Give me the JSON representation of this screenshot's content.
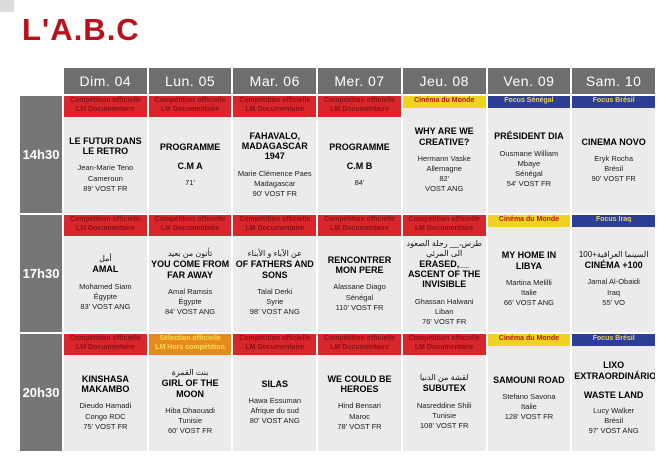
{
  "page_title": "L'A.B.C",
  "schedule": {
    "days": [
      "Dim. 04",
      "Lun. 05",
      "Mar. 06",
      "Mer. 07",
      "Jeu. 08",
      "Ven. 09",
      "Sam. 10"
    ],
    "times": [
      "14h30",
      "17h30",
      "20h30"
    ],
    "banners": {
      "competition": {
        "bg": "#d9262c",
        "fg": "#8a1115",
        "lines": [
          "Compétition officielle",
          "LM Documentaire"
        ]
      },
      "selection": {
        "bg": "#e8891e",
        "fg": "#f7df4e",
        "lines": [
          "Sélection officielle",
          "LM Hors compétition"
        ]
      },
      "monde": {
        "bg": "#f0d321",
        "fg": "#b5121b",
        "lines": [
          "Cinéma du Monde"
        ]
      },
      "senegal": {
        "bg": "#2c3e96",
        "fg": "#e8d44d",
        "lines": [
          "Focus Sénégal"
        ]
      },
      "bresil": {
        "bg": "#2c3e96",
        "fg": "#e8d44d",
        "lines": [
          "Focus Brésil"
        ]
      },
      "iraq": {
        "bg": "#2c3e96",
        "fg": "#e8d44d",
        "lines": [
          "Focus Iraq"
        ]
      }
    },
    "rows": [
      {
        "time": "14h30",
        "films": [
          {
            "banner": "competition",
            "arabic": "",
            "title": "LE FUTUR DANS LE RETRO",
            "title2": "",
            "details": [
              "Jean-Marie Teno",
              "Cameroun",
              "89' VOST FR"
            ]
          },
          {
            "banner": "competition",
            "arabic": "",
            "title": "PROGRAMME",
            "title2": "C.M A",
            "details": [
              "71'"
            ]
          },
          {
            "banner": "competition",
            "arabic": "",
            "title": "FAHAVALO, MADAGASCAR 1947",
            "title2": "",
            "details": [
              "Marie Clémence Paes",
              "Madagascar",
              "90'  VOST FR"
            ]
          },
          {
            "banner": "competition",
            "arabic": "",
            "title": "PROGRAMME",
            "title2": "C.M B",
            "details": [
              "84'"
            ]
          },
          {
            "banner": "monde",
            "arabic": "",
            "title": "WHY ARE WE CREATIVE?",
            "title2": "",
            "details": [
              "Hermann Vaske",
              "Allemagne",
              "82'",
              "VOST ANG"
            ]
          },
          {
            "banner": "senegal",
            "arabic": "",
            "title": "PRÉSIDENT DIA",
            "title2": "",
            "details": [
              "Ousmane William Mbaye",
              "Sénégal",
              "54' VOST FR"
            ]
          },
          {
            "banner": "bresil",
            "arabic": "",
            "title": "CINEMA NOVO",
            "title2": "",
            "details": [
              "Eryk Rocha",
              "Brésil",
              "90' VOST FR"
            ]
          }
        ]
      },
      {
        "time": "17h30",
        "films": [
          {
            "banner": "competition",
            "arabic": "أمل",
            "title": "AMAL",
            "title2": "",
            "details": [
              "Mohamed Siam",
              "Égypte",
              "83'  VOST ANG"
            ]
          },
          {
            "banner": "competition",
            "arabic": "تأتون من بعيد",
            "title": "YOU COME FROM FAR AWAY",
            "title2": "",
            "details": [
              "Amal Ramsis",
              "Égypte",
              "84' VOST ANG"
            ]
          },
          {
            "banner": "competition",
            "arabic": "عن الآباء و الأبناء",
            "title": "OF FATHERS AND SONS",
            "title2": "",
            "details": [
              "Talal Derki",
              "Syrie",
              "98' VOST ANG"
            ]
          },
          {
            "banner": "competition",
            "arabic": "",
            "title": "RENCONTRER MON PERE",
            "title2": "",
            "details": [
              "Alassane Diago",
              "Sénégal",
              "110' VOST FR"
            ]
          },
          {
            "banner": "competition",
            "arabic": "طرس،__ رحلة الصعود الى المرئي",
            "title": "ERASED,__ ASCENT OF THE INVISIBLE",
            "title2": "",
            "details": [
              "Ghassan Halwani",
              "Liban",
              "76' VOST FR"
            ]
          },
          {
            "banner": "monde",
            "arabic": "",
            "title": "MY HOME IN LIBYA",
            "title2": "",
            "details": [
              "Martina Melilli",
              "Italie",
              "66' VOST ANG"
            ]
          },
          {
            "banner": "iraq",
            "arabic": "السينما العراقية+100",
            "title": "CINÉMA +100",
            "title2": "",
            "details": [
              "Jamal Al-Obaidi",
              "Iraq",
              "55' VO"
            ]
          }
        ]
      },
      {
        "time": "20h30",
        "films": [
          {
            "banner": "competition",
            "arabic": "",
            "title": "KINSHASA MAKAMBO",
            "title2": "",
            "details": [
              "Dieudo Hamadi",
              "Congo RDC",
              "75' VOST FR"
            ]
          },
          {
            "banner": "selection",
            "arabic": "بنت القمرة",
            "title": "GIRL OF THE MOON",
            "title2": "",
            "details": [
              "Hiba Dhaouadi",
              "Tunisie",
              "60' VOST FR"
            ]
          },
          {
            "banner": "competition",
            "arabic": "",
            "title": "SILAS",
            "title2": "",
            "details": [
              "Hawa Essuman",
              "Afrique du sud",
              "80' VOST ANG"
            ]
          },
          {
            "banner": "competition",
            "arabic": "",
            "title": "WE COULD BE HEROES",
            "title2": "",
            "details": [
              "Hind Bensari",
              "Maroc",
              "78' VOST FR"
            ]
          },
          {
            "banner": "competition",
            "arabic": "لقشة من الدنيا",
            "title": "SUBUTEX",
            "title2": "",
            "details": [
              "Nasreddine Shili",
              "Tunisie",
              "108' VOST FR"
            ]
          },
          {
            "banner": "monde",
            "arabic": "",
            "title": "SAMOUNI ROAD",
            "title2": "",
            "details": [
              "Stefano Savona",
              "Italie",
              "128' VOST FR"
            ]
          },
          {
            "banner": "bresil",
            "arabic": "",
            "title": "LIXO EXTRAORDINÁRIO",
            "title2": "WASTE LAND",
            "details": [
              "Lucy Walker",
              "Brésil",
              "97' VOST ANG"
            ]
          }
        ]
      }
    ]
  }
}
